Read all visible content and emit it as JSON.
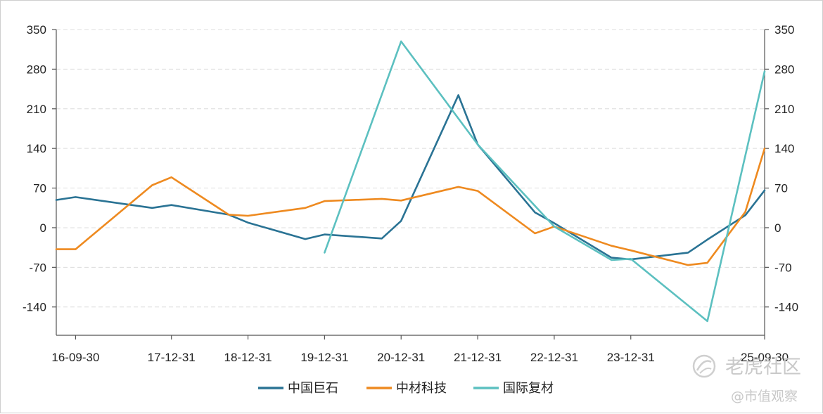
{
  "chart_data": {
    "type": "line",
    "title": "",
    "xlabel": "",
    "ylabel": "",
    "x_tick_labels": [
      "16-09-30",
      "17-12-31",
      "18-12-31",
      "19-12-31",
      "20-12-31",
      "21-12-31",
      "22-12-31",
      "23-12-31",
      "25-09-30"
    ],
    "ylim": [
      -190,
      350
    ],
    "y_ticks": [
      350,
      280,
      210,
      140,
      70,
      0,
      -70,
      -140
    ],
    "y_ticks_right": [
      350,
      280,
      210,
      140,
      70,
      0,
      -70,
      -140
    ],
    "grid": true,
    "legend_position": "bottom-center",
    "series": [
      {
        "name": "中国巨石",
        "color": "#2a7394",
        "x": [
          "16-06-30",
          "16-09-30",
          "17-09-30",
          "17-12-31",
          "18-09-30",
          "18-12-31",
          "19-09-30",
          "19-12-31",
          "20-09-30",
          "20-12-31",
          "21-09-30",
          "21-12-31",
          "22-09-30",
          "22-12-31",
          "23-09-30",
          "23-12-31",
          "24-09-30",
          "24-12-31",
          "25-06-30",
          "25-09-30"
        ],
        "values": [
          49,
          54,
          35,
          40,
          23,
          9,
          -20,
          -12,
          -19,
          12,
          234,
          147,
          27,
          8,
          -53,
          -56,
          -44,
          -21,
          22,
          66
        ]
      },
      {
        "name": "中材科技",
        "color": "#ee8a20",
        "x": [
          "16-06-30",
          "16-09-30",
          "17-09-30",
          "17-12-31",
          "18-09-30",
          "18-12-31",
          "19-09-30",
          "19-12-31",
          "20-09-30",
          "20-12-31",
          "21-09-30",
          "21-12-31",
          "22-09-30",
          "22-12-31",
          "23-09-30",
          "23-12-31",
          "24-09-30",
          "24-12-31",
          "25-06-30",
          "25-09-30"
        ],
        "values": [
          -38,
          -38,
          75,
          89,
          23,
          21,
          35,
          47,
          51,
          48,
          72,
          65,
          -10,
          2,
          -32,
          -40,
          -66,
          -62,
          28,
          140
        ]
      },
      {
        "name": "国际复材",
        "color": "#5cc0c0",
        "x": [
          "19-12-31",
          "20-12-31",
          "21-12-31",
          "22-12-31",
          "23-09-30",
          "23-12-31",
          "24-12-31",
          "25-09-30"
        ],
        "values": [
          -44,
          329,
          147,
          2,
          -57,
          -55,
          -165,
          276
        ]
      }
    ]
  },
  "watermark": {
    "brand": "老虎社区",
    "account": "@市值观察"
  }
}
